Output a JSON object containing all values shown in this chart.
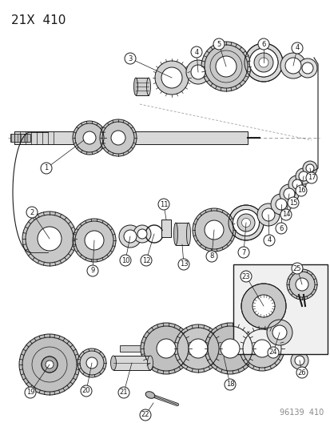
{
  "title": "21X  410",
  "footer": "96139  410",
  "bg_color": "#ffffff",
  "line_color": "#1a1a1a",
  "gray_fill": "#c8c8c8",
  "light_gray": "#e8e8e8",
  "white": "#ffffff",
  "title_fontsize": 11,
  "footer_fontsize": 7,
  "callout_fontsize": 6
}
